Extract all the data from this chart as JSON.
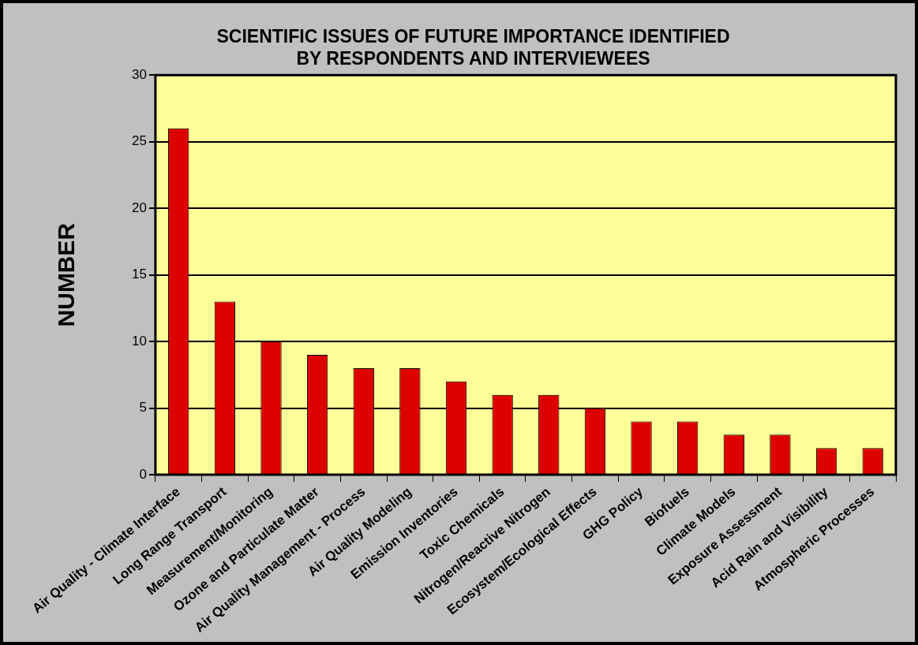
{
  "chart_data": {
    "type": "bar",
    "title": "SCIENTIFIC ISSUES OF FUTURE IMPORTANCE IDENTIFIED\nBY RESPONDENTS AND INTERVIEWEES",
    "ylabel": "NUMBER",
    "categories": [
      "Air Quality - Climate Interface",
      "Long Range Transport",
      "Measurement/Monitoring",
      "Ozone and Particulate Matter",
      "Air Quality Management - Process",
      "Air Quality Modeling",
      "Emission Inventories",
      "Toxic Chemicals",
      "Nitrogen/Reactive Nitrogen",
      "Ecosystem/Ecological Effects",
      "GHG Policy",
      "Biofuels",
      "Climate Models",
      "Exposure Assessment",
      "Acid Rain and Visibility",
      "Atmospheric Processes"
    ],
    "series": [
      {
        "color": "#dd0000",
        "values": [
          26,
          13,
          10,
          9,
          8,
          8,
          7,
          6,
          6,
          5,
          4,
          4,
          3,
          3,
          2,
          2
        ]
      }
    ],
    "ylim": [
      0,
      30
    ],
    "yticks": [
      0,
      5,
      10,
      15,
      20,
      25,
      30
    ],
    "grid": "y",
    "legend": false
  }
}
